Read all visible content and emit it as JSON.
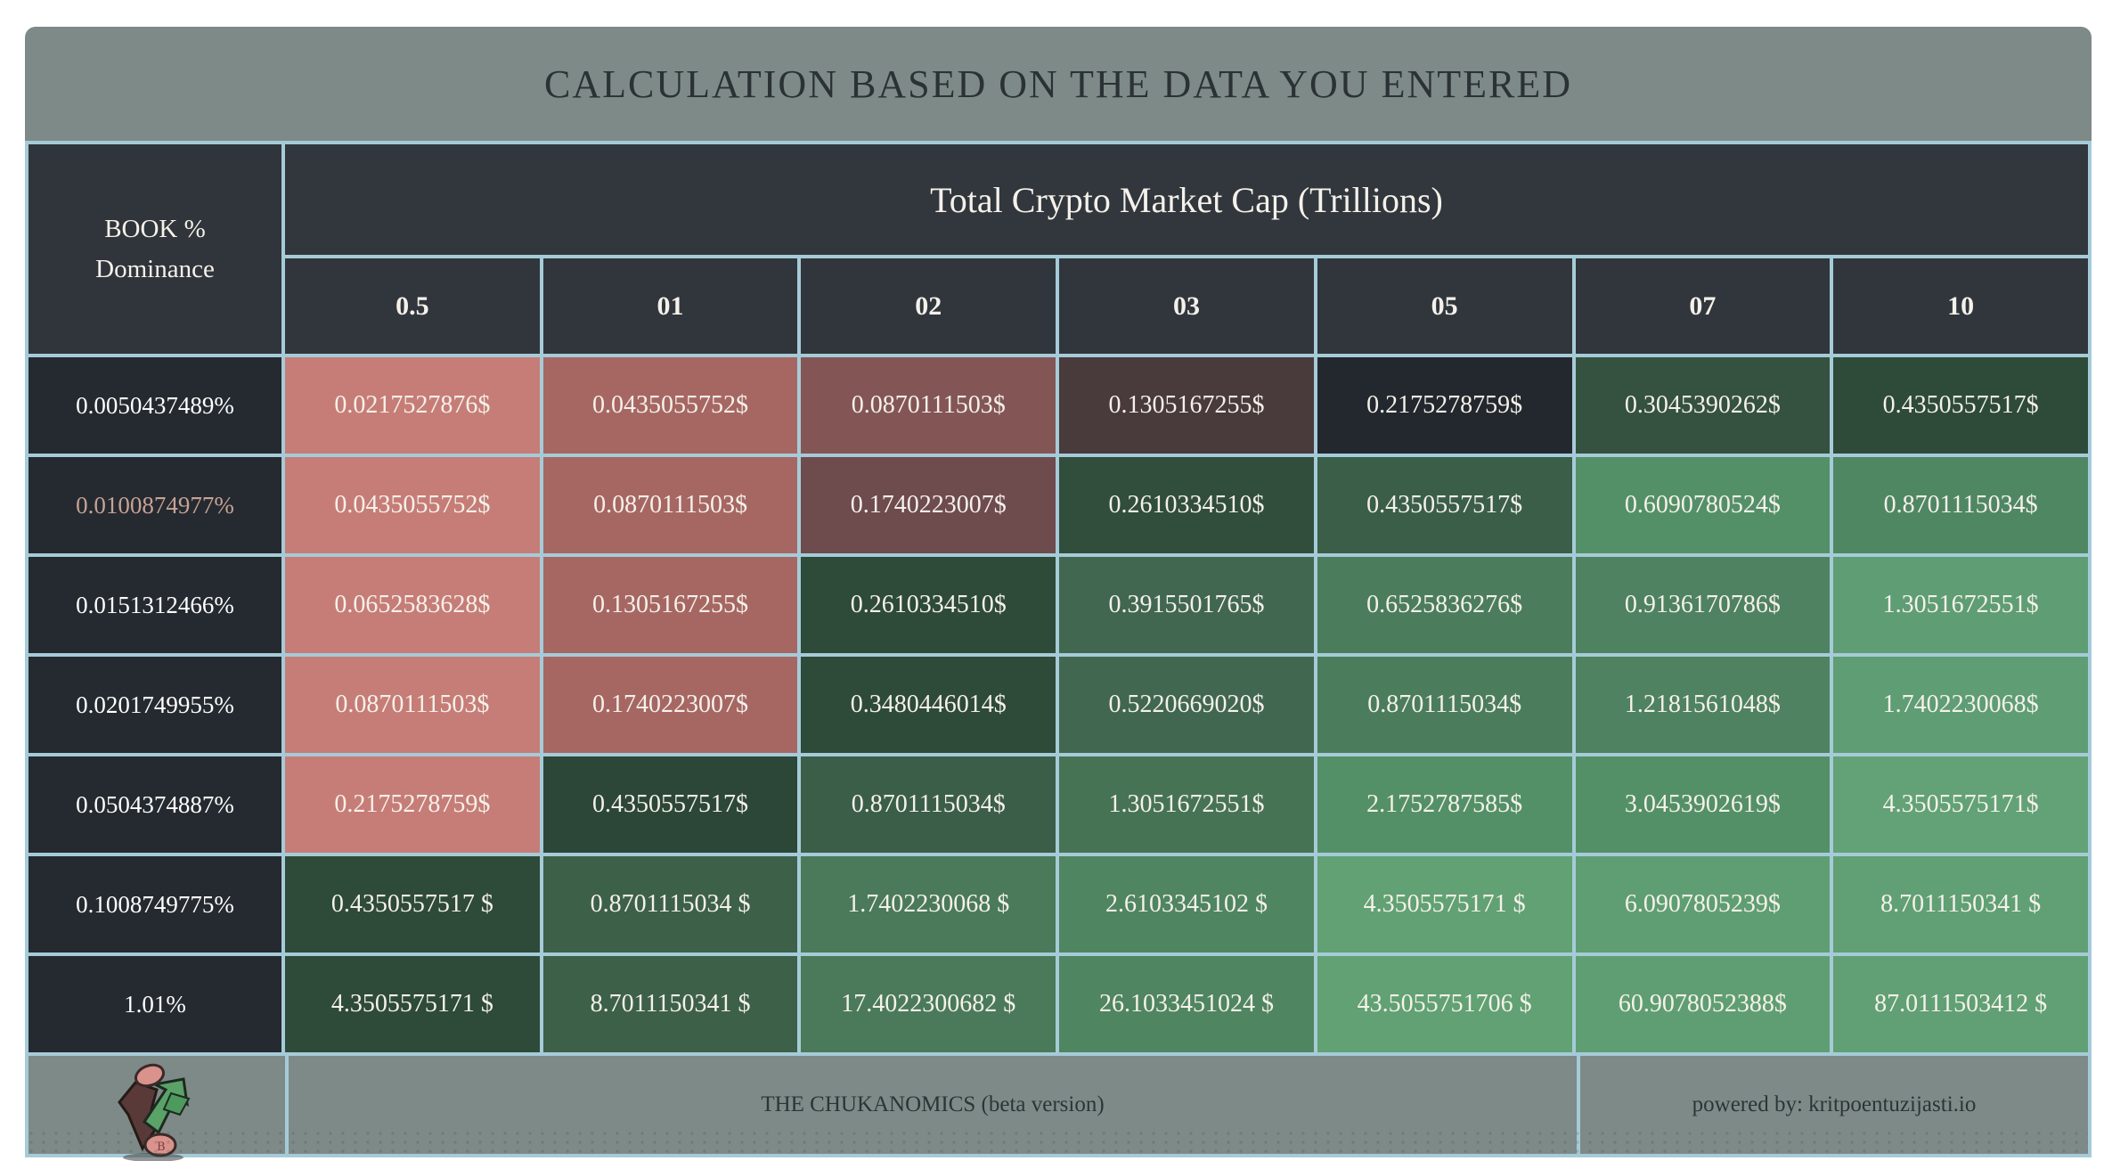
{
  "title": "CALCULATION BASED ON THE DATA YOU ENTERED",
  "table": {
    "corner": {
      "line1": "BOOK %",
      "line2": "Dominance"
    },
    "group_header": "Total Crypto Market Cap (Trillions)",
    "columns": [
      "0.5",
      "01",
      "02",
      "03",
      "05",
      "07",
      "10"
    ],
    "rows": [
      {
        "label": "0.0050437489%",
        "label_color": "#ffffff",
        "cells": [
          {
            "text": "0.0217527876$",
            "bg": "#c67d77"
          },
          {
            "text": "0.0435055752$",
            "bg": "#a66763"
          },
          {
            "text": "0.0870111503$",
            "bg": "#835655"
          },
          {
            "text": "0.1305167255$",
            "bg": "#493a3c"
          },
          {
            "text": "0.2175278759$",
            "bg": "#23282e"
          },
          {
            "text": "0.3045390262$",
            "bg": "#355140"
          },
          {
            "text": "0.4350557517$",
            "bg": "#2e4a39"
          }
        ]
      },
      {
        "label": "0.0100874977%",
        "label_color": "#c8a294",
        "cells": [
          {
            "text": "0.0435055752$",
            "bg": "#c67d77"
          },
          {
            "text": "0.0870111503$",
            "bg": "#a66763"
          },
          {
            "text": "0.1740223007$",
            "bg": "#6e4b4d"
          },
          {
            "text": "0.2610334510$",
            "bg": "#314d3c"
          },
          {
            "text": "0.4350557517$",
            "bg": "#3b5e48"
          },
          {
            "text": "0.6090780524$",
            "bg": "#549067"
          },
          {
            "text": "0.8701115034$",
            "bg": "#4f8762"
          }
        ]
      },
      {
        "label": "0.0151312466%",
        "label_color": "#ffffff",
        "cells": [
          {
            "text": "0.0652583628$",
            "bg": "#c67d77"
          },
          {
            "text": "0.1305167255$",
            "bg": "#a66763"
          },
          {
            "text": "0.2610334510$",
            "bg": "#2e4a39"
          },
          {
            "text": "0.3915501765$",
            "bg": "#416750"
          },
          {
            "text": "0.6525836276$",
            "bg": "#4b7d5d"
          },
          {
            "text": "0.9136170786$",
            "bg": "#4f8260"
          },
          {
            "text": "1.3051672551$",
            "bg": "#5f9d74"
          }
        ]
      },
      {
        "label": "0.0201749955%",
        "label_color": "#ffffff",
        "cells": [
          {
            "text": "0.0870111503$",
            "bg": "#c67d77"
          },
          {
            "text": "0.1740223007$",
            "bg": "#a66763"
          },
          {
            "text": "0.3480446014$",
            "bg": "#2e4a39"
          },
          {
            "text": "0.5220669020$",
            "bg": "#416750"
          },
          {
            "text": "0.8701115034$",
            "bg": "#4b7d5d"
          },
          {
            "text": "1.2181561048$",
            "bg": "#4f8260"
          },
          {
            "text": "1.7402230068$",
            "bg": "#5f9d74"
          }
        ]
      },
      {
        "label": "0.0504374887%",
        "label_color": "#ffffff",
        "cells": [
          {
            "text": "0.2175278759$",
            "bg": "#c67d77"
          },
          {
            "text": "0.4350557517$",
            "bg": "#2c4737"
          },
          {
            "text": "0.8701115034$",
            "bg": "#3b5e48"
          },
          {
            "text": "1.3051672551$",
            "bg": "#477355"
          },
          {
            "text": "2.1752787585$",
            "bg": "#549067"
          },
          {
            "text": "3.0453902619$",
            "bg": "#549067"
          },
          {
            "text": "4.3505575171$",
            "bg": "#62a276"
          }
        ]
      },
      {
        "label": "0.1008749775%",
        "label_color": "#ffffff",
        "cells": [
          {
            "text": "0.4350557517 $",
            "bg": "#2e4a39"
          },
          {
            "text": "0.8701115034 $",
            "bg": "#3d6049"
          },
          {
            "text": "1.7402230068 $",
            "bg": "#4a7a59"
          },
          {
            "text": "2.6103345102 $",
            "bg": "#4f8560"
          },
          {
            "text": "4.3505575171 $",
            "bg": "#61a173"
          },
          {
            "text": "6.0907805239$",
            "bg": "#5f9e72"
          },
          {
            "text": "8.7011150341 $",
            "bg": "#60a074"
          }
        ]
      },
      {
        "label": "1.01%",
        "label_color": "#ffffff",
        "cells": [
          {
            "text": "4.3505575171 $",
            "bg": "#2e4a39"
          },
          {
            "text": "8.7011150341 $",
            "bg": "#3d6049"
          },
          {
            "text": "17.4022300682 $",
            "bg": "#4a7a59"
          },
          {
            "text": "26.1033451024 $",
            "bg": "#4f8560"
          },
          {
            "text": "43.5055751706 $",
            "bg": "#61a173"
          },
          {
            "text": "60.9078052388$",
            "bg": "#5f9e72"
          },
          {
            "text": "87.0111503412 $",
            "bg": "#60a074"
          }
        ]
      }
    ]
  },
  "footer": {
    "brand": "THE CHUKANOMICS (beta version)",
    "powered_by": "powered by: kritpoentuzijasti.io",
    "logo_icon": "mascot-arrows-coins-icon"
  },
  "colors": {
    "border": "#a6cbd8",
    "bar_gray": "#7e8a88",
    "header_bg": "#2f353b",
    "label_bg": "#242a30",
    "title_text": "#2a3234",
    "cell_text": "#f5f1ea",
    "coin": "#d9928c",
    "arrow_up_green": "#5aa268",
    "arrow_down_maroon": "#6e403d"
  }
}
